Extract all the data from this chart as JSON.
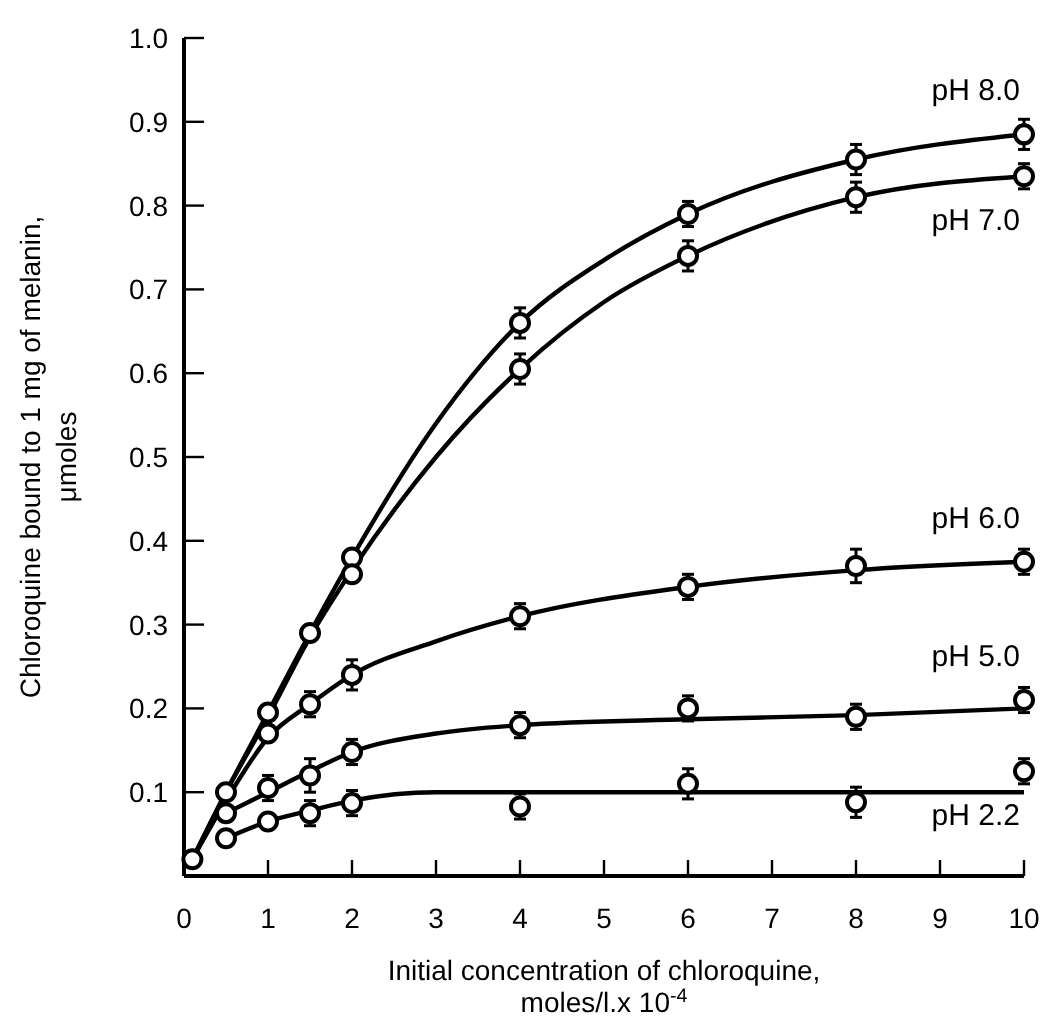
{
  "chart_data": {
    "type": "scatter",
    "xlabel": "Initial concentration of chloroquine, moles/l.x 10$^{-4}$",
    "ylabel": "Chloroquine bound to 1 mg of melanin, μmoles",
    "xlim": [
      0,
      10
    ],
    "ylim": [
      0,
      1.0
    ],
    "xticks": [
      0,
      1,
      2,
      3,
      4,
      5,
      6,
      7,
      8,
      9,
      10
    ],
    "yticks": [
      0.1,
      0.2,
      0.3,
      0.4,
      0.5,
      0.6,
      0.7,
      0.8,
      0.9,
      {
        "value": 1.0,
        "label": "1.0"
      }
    ],
    "grid": false,
    "marker": "circle",
    "series": [
      {
        "name": "pH 8.0",
        "color": "#000000",
        "x": [
          0.1,
          0.5,
          1,
          1.5,
          2,
          4,
          6,
          8,
          10
        ],
        "values": [
          0.02,
          0.1,
          0.195,
          0.29,
          0.38,
          0.66,
          0.79,
          0.855,
          0.885
        ],
        "errors": [
          null,
          null,
          null,
          null,
          null,
          0.018,
          0.015,
          0.018,
          0.018
        ]
      },
      {
        "name": "pH 7.0",
        "color": "#000000",
        "x": [
          1,
          2,
          4,
          6,
          8,
          10
        ],
        "values": [
          0.17,
          0.36,
          0.605,
          0.74,
          0.81,
          0.835
        ],
        "errors": [
          null,
          null,
          0.018,
          0.018,
          0.018,
          0.015
        ]
      },
      {
        "name": "pH 6.0",
        "color": "#000000",
        "x": [
          0.5,
          1.5,
          2,
          4,
          6,
          8,
          10
        ],
        "values": [
          0.075,
          0.205,
          0.24,
          0.31,
          0.345,
          0.37,
          0.375
        ],
        "errors": [
          null,
          0.015,
          0.018,
          0.015,
          0.015,
          0.02,
          0.015
        ]
      },
      {
        "name": "pH 5.0",
        "color": "#000000",
        "x": [
          1,
          1.5,
          2,
          4,
          6,
          8,
          10
        ],
        "values": [
          0.105,
          0.12,
          0.148,
          0.18,
          0.2,
          0.19,
          0.21
        ],
        "errors": [
          0.015,
          0.02,
          0.015,
          0.015,
          0.015,
          0.015,
          0.015
        ]
      },
      {
        "name": "pH 2.2",
        "color": "#000000",
        "x": [
          0.5,
          1,
          1.5,
          2,
          4,
          6,
          8,
          10
        ],
        "values": [
          0.045,
          0.065,
          0.075,
          0.087,
          0.083,
          0.11,
          0.088,
          0.125
        ],
        "errors": [
          null,
          null,
          0.015,
          0.015,
          0.015,
          0.018,
          0.018,
          0.015
        ]
      },
      {
        "type": "line",
        "marker": "none",
        "color": "#000000",
        "x": [
          0.1,
          0.5,
          1,
          1.5,
          2,
          3,
          4,
          5,
          6,
          8,
          10
        ],
        "values": [
          0.02,
          0.1,
          0.195,
          0.29,
          0.38,
          0.54,
          0.66,
          0.735,
          0.79,
          0.855,
          0.885
        ]
      },
      {
        "type": "line",
        "marker": "none",
        "color": "#000000",
        "x": [
          0.1,
          0.5,
          1,
          1.5,
          2,
          3,
          4,
          5,
          6,
          8,
          10
        ],
        "values": [
          0.02,
          0.1,
          0.19,
          0.285,
          0.365,
          0.5,
          0.605,
          0.685,
          0.74,
          0.81,
          0.835
        ]
      },
      {
        "type": "line",
        "marker": "none",
        "color": "#000000",
        "x": [
          0.1,
          0.5,
          1,
          1.5,
          2,
          3,
          4,
          6,
          8,
          10
        ],
        "values": [
          0.02,
          0.09,
          0.165,
          0.205,
          0.24,
          0.28,
          0.31,
          0.345,
          0.365,
          0.375
        ]
      },
      {
        "type": "line",
        "marker": "none",
        "color": "#000000",
        "x": [
          0.5,
          1,
          1.5,
          2,
          3,
          4,
          6,
          8,
          10
        ],
        "values": [
          0.075,
          0.1,
          0.125,
          0.148,
          0.17,
          0.18,
          0.187,
          0.192,
          0.2
        ]
      },
      {
        "type": "line",
        "marker": "none",
        "color": "#000000",
        "x": [
          0.5,
          1,
          1.5,
          2,
          3,
          4,
          6,
          8,
          10
        ],
        "values": [
          0.045,
          0.065,
          0.078,
          0.09,
          0.1,
          0.1,
          0.1,
          0.1,
          0.1
        ]
      }
    ]
  }
}
